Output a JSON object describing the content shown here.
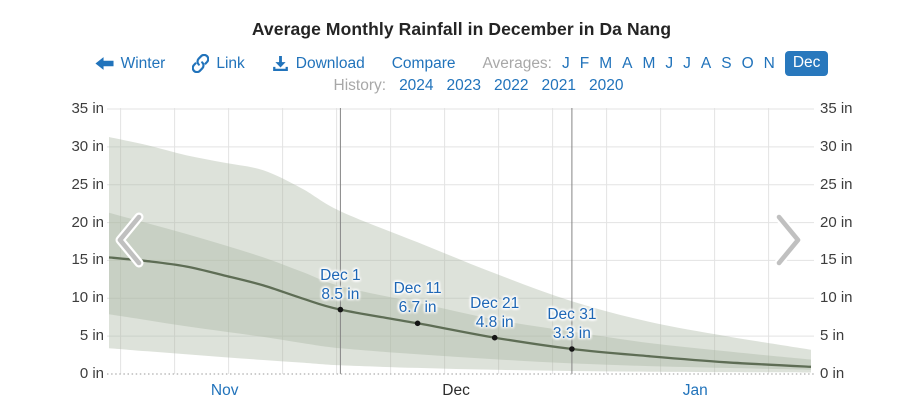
{
  "title": "Average Monthly Rainfall in December in Da Nang",
  "toolbar": {
    "back_label": "Winter",
    "link_label": "Link",
    "download_label": "Download",
    "compare_label": "Compare",
    "averages_label": "Averages:",
    "month_letters": [
      "J",
      "F",
      "M",
      "A",
      "M",
      "J",
      "J",
      "A",
      "S",
      "O",
      "N"
    ],
    "selected_month": "Dec",
    "history_label": "History:",
    "history_years": [
      "2024",
      "2023",
      "2022",
      "2021",
      "2020"
    ]
  },
  "colors": {
    "link_blue": "#2173bb",
    "badge_bg": "#2878bd",
    "muted_gray": "#a8a8a8",
    "axis_text": "#3d3d3d",
    "band_fill": "#a9b6a3",
    "band_opacity": 0.4,
    "line_color": "#5e6d55",
    "dot_color": "#151515",
    "grid_light": "#e3e3e3",
    "grid_dark": "#858585",
    "zero_line": "#bcbcbc",
    "annotation_blue": "#1d66b5",
    "chevron_gray": "#c0c0c0"
  },
  "chart_data": {
    "type": "area",
    "title": "Average Monthly Rainfall in December in Da Nang",
    "x_axis": "days, Nov 1 through Jan 31",
    "x_range_days": [
      0,
      91
    ],
    "y_unit": "in",
    "y_ticks": [
      0,
      5,
      10,
      15,
      20,
      25,
      30,
      35
    ],
    "y_max": 35,
    "grid": {
      "week_start_day": 1.5,
      "week_step": 7,
      "dark_line_days": [
        30,
        60
      ]
    },
    "x_months": [
      {
        "label": "Nov",
        "day": 15,
        "is_link": true
      },
      {
        "label": "Dec",
        "day": 45,
        "is_link": false
      },
      {
        "label": "Jan",
        "day": 76,
        "is_link": true
      }
    ],
    "days": [
      0,
      5,
      10,
      15,
      20,
      25,
      30,
      40,
      50,
      60,
      70,
      80,
      91
    ],
    "series": [
      {
        "name": "average",
        "values": [
          15.4,
          14.9,
          14.2,
          13.0,
          11.7,
          10.0,
          8.5,
          6.7,
          4.8,
          3.3,
          2.35,
          1.55,
          0.95
        ]
      },
      {
        "name": "band_outer_hi",
        "values": [
          31.3,
          30.2,
          28.9,
          27.9,
          26.9,
          24.5,
          21.5,
          17.4,
          13.3,
          9.6,
          6.9,
          5.0,
          3.2
        ]
      },
      {
        "name": "band_inner_hi",
        "values": [
          21.3,
          19.9,
          18.5,
          17.0,
          15.4,
          13.5,
          11.6,
          9.4,
          7.2,
          5.6,
          4.1,
          3.0,
          1.9
        ]
      },
      {
        "name": "band_inner_lo",
        "values": [
          7.9,
          7.1,
          6.3,
          5.6,
          4.9,
          4.1,
          3.4,
          2.6,
          1.95,
          1.4,
          1.05,
          0.8,
          0.55
        ]
      },
      {
        "name": "band_outer_lo",
        "values": [
          3.4,
          3.0,
          2.6,
          2.2,
          1.85,
          1.5,
          1.15,
          0.8,
          0.55,
          0.4,
          0.3,
          0.25,
          0.2
        ]
      }
    ],
    "annotations": [
      {
        "date_label": "Dec 1",
        "value_label": "8.5 in",
        "day": 30,
        "value": 8.5
      },
      {
        "date_label": "Dec 11",
        "value_label": "6.7 in",
        "day": 40,
        "value": 6.7
      },
      {
        "date_label": "Dec 21",
        "value_label": "4.8 in",
        "day": 50,
        "value": 4.8
      },
      {
        "date_label": "Dec 31",
        "value_label": "3.3 in",
        "day": 60,
        "value": 3.3
      }
    ]
  }
}
